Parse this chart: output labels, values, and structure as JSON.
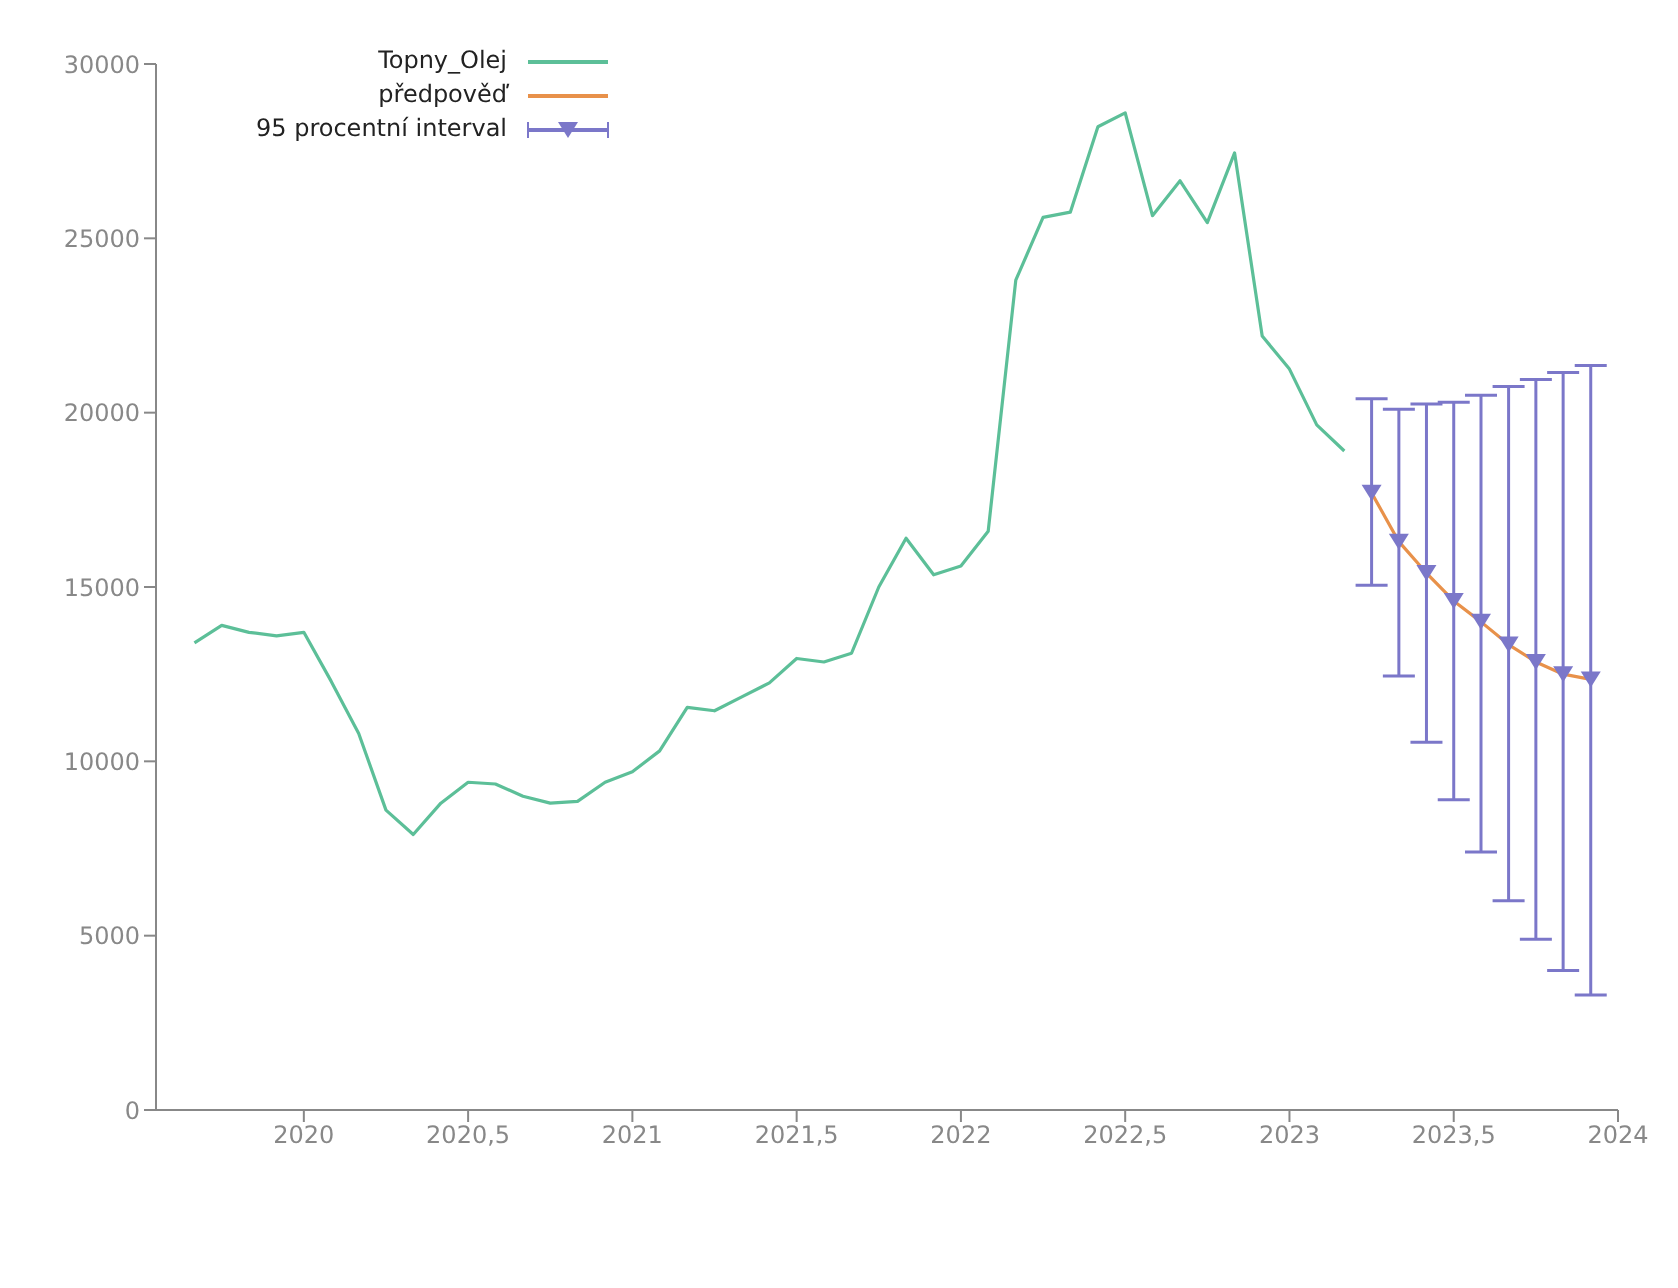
{
  "chart_data": {
    "type": "line",
    "xlim": [
      2019.55,
      2024.0
    ],
    "xticks": [
      2020,
      {
        "value": 2020.5,
        "label": "2020,5"
      },
      2021,
      {
        "value": 2021.5,
        "label": "2021,5"
      },
      2022,
      {
        "value": 2022.5,
        "label": "2022,5"
      },
      2023,
      {
        "value": 2023.5,
        "label": "2023,5"
      },
      2024
    ],
    "ylim": [
      0,
      30000
    ],
    "yticks": [
      0,
      5000,
      10000,
      15000,
      20000,
      25000,
      30000
    ],
    "grid": false,
    "legend": "top left",
    "line_style": "solid",
    "series": [
      {
        "name": "Topny_Olej",
        "type": "line",
        "marker": "none",
        "color": "#5cbf98",
        "x": [
          2019.667,
          2019.75,
          2019.833,
          2019.917,
          2020.0,
          2020.083,
          2020.167,
          2020.25,
          2020.333,
          2020.417,
          2020.5,
          2020.583,
          2020.667,
          2020.75,
          2020.833,
          2020.917,
          2021.0,
          2021.083,
          2021.167,
          2021.25,
          2021.333,
          2021.417,
          2021.5,
          2021.583,
          2021.667,
          2021.75,
          2021.833,
          2021.917,
          2022.0,
          2022.083,
          2022.167,
          2022.25,
          2022.333,
          2022.417,
          2022.5,
          2022.583,
          2022.667,
          2022.75,
          2022.833,
          2022.917,
          2023.0,
          2023.083,
          2023.167
        ],
        "values": [
          13400,
          13900,
          13700,
          13600,
          13700,
          12300,
          10800,
          8600,
          7900,
          8800,
          9400,
          9350,
          9000,
          8800,
          8850,
          9400,
          9700,
          10300,
          11550,
          11450,
          11850,
          12250,
          12950,
          12850,
          13100,
          15000,
          16400,
          15350,
          15600,
          16600,
          23800,
          25600,
          25750,
          28200,
          28600,
          25650,
          26650,
          25450,
          27450,
          22200,
          21250,
          19650,
          18900
        ]
      },
      {
        "name": "předpověď",
        "type": "line",
        "marker": "none",
        "color": "#e8914a",
        "x": [
          2023.25,
          2023.333,
          2023.417,
          2023.5,
          2023.583,
          2023.667,
          2023.75,
          2023.833,
          2023.917
        ],
        "values": [
          17700,
          16300,
          15400,
          14600,
          14000,
          13350,
          12850,
          12500,
          12350
        ]
      },
      {
        "name": "95 procentní interval",
        "type": "scatter",
        "marker": "triangle",
        "color": "#7b77c9",
        "x": [
          2023.25,
          2023.333,
          2023.417,
          2023.5,
          2023.583,
          2023.667,
          2023.75,
          2023.833,
          2023.917
        ],
        "values": [
          17700,
          16300,
          15400,
          14600,
          14000,
          13350,
          12850,
          12500,
          12350
        ],
        "errors": [
          [
            15050,
            20400
          ],
          [
            12450,
            20100
          ],
          [
            10550,
            20250
          ],
          [
            8900,
            20300
          ],
          [
            7400,
            20500
          ],
          [
            6000,
            20750
          ],
          [
            4900,
            20950
          ],
          [
            4000,
            21150
          ],
          [
            3300,
            21350
          ]
        ]
      }
    ]
  }
}
